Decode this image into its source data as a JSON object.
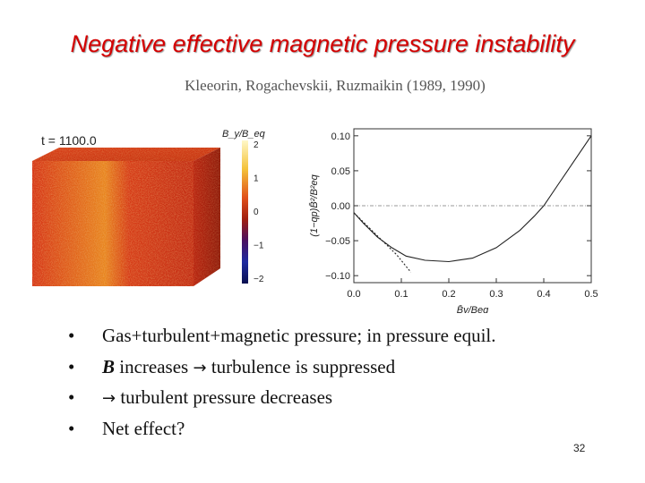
{
  "slide": {
    "title": "Negative effective magnetic pressure instability",
    "subtitle": "Kleeorin, Rogachevskii, Ruzmaikin (1989, 1990)",
    "page_number": "32"
  },
  "cube_figure": {
    "time_label": "t = 1100.0",
    "colorbar_title": "B_y/B_eq",
    "colorbar_ticks": [
      "2",
      "1",
      "0",
      "−1",
      "−2"
    ]
  },
  "bullets": [
    {
      "bold": "",
      "arrow": "",
      "text": "Gas+turbulent+magnetic pressure; in pressure equil."
    },
    {
      "bold": "B",
      "arrow": "→",
      "text": "turbulence is suppressed",
      "pre": " increases "
    },
    {
      "bold": "",
      "arrow": "→",
      "text": "turbulent pressure decreases",
      "pre": ""
    },
    {
      "bold": "",
      "arrow": "",
      "text": "Net effect?"
    }
  ],
  "chart_data": {
    "type": "line",
    "xlabel": "B̄y/Beq",
    "ylabel": "(1−qp)B̄²/B²eq",
    "xlim": [
      0.0,
      0.5
    ],
    "ylim": [
      -0.11,
      0.11
    ],
    "x_ticks": [
      "0.0",
      "0.1",
      "0.2",
      "0.3",
      "0.4",
      "0.5"
    ],
    "y_ticks": [
      "0.10",
      "0.05",
      "0.00",
      "−0.05",
      "−0.10"
    ],
    "reference_line_y": 0.0,
    "series": [
      {
        "style": "solid",
        "x": [
          0.0,
          0.02,
          0.05,
          0.08,
          0.11,
          0.15,
          0.2,
          0.25,
          0.3,
          0.35,
          0.38,
          0.4,
          0.43,
          0.46,
          0.5
        ],
        "y": [
          -0.01,
          -0.025,
          -0.045,
          -0.06,
          -0.072,
          -0.078,
          -0.08,
          -0.075,
          -0.06,
          -0.035,
          -0.015,
          0.0,
          0.03,
          0.06,
          0.1
        ]
      },
      {
        "style": "dashed",
        "x": [
          0.0,
          0.03,
          0.06,
          0.09,
          0.12
        ],
        "y": [
          -0.01,
          -0.03,
          -0.05,
          -0.07,
          -0.095
        ]
      }
    ]
  }
}
